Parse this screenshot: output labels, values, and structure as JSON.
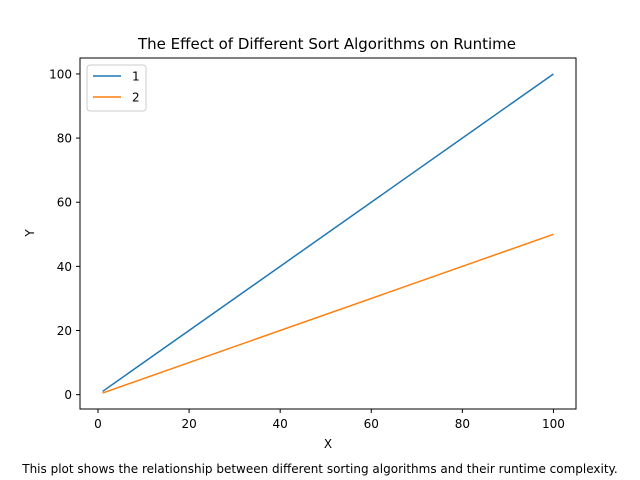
{
  "chart_data": {
    "type": "line",
    "title": "The Effect of Different Sort Algorithms on Runtime",
    "xlabel": "X",
    "ylabel": "Y",
    "xlim": [
      -3.95,
      104.95
    ],
    "ylim": [
      -4.475,
      104.975
    ],
    "xticks": [
      0,
      20,
      40,
      60,
      80,
      100
    ],
    "yticks": [
      0,
      20,
      40,
      60,
      80,
      100
    ],
    "grid": false,
    "legend_position": "upper-left",
    "series": [
      {
        "name": "1",
        "color": "#1f77b4",
        "x": [
          1,
          100
        ],
        "y": [
          1,
          100
        ]
      },
      {
        "name": "2",
        "color": "#ff7f0e",
        "x": [
          1,
          100
        ],
        "y": [
          0.5,
          50
        ]
      }
    ],
    "caption": "This plot shows the relationship between different sorting algorithms and their runtime complexity."
  }
}
